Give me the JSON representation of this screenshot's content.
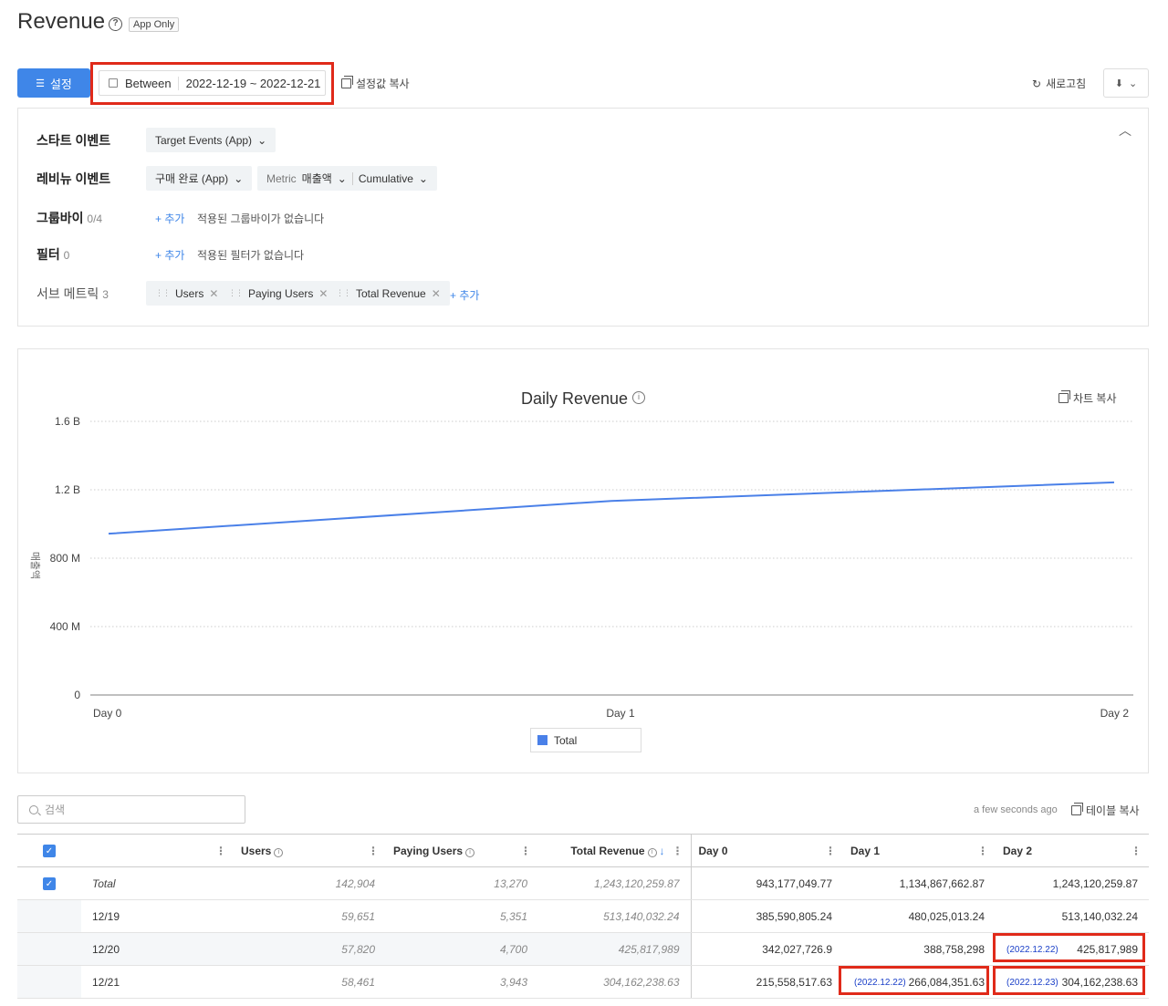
{
  "header": {
    "title": "Revenue",
    "help": "?",
    "badge": "App Only"
  },
  "toolbar": {
    "settings_label": "설정",
    "date_mode": "Between",
    "date_range": "2022-12-19 ~ 2022-12-21",
    "copy_settings_label": "설정값 복사",
    "refresh_label": "새로고침"
  },
  "settings": {
    "start_event": {
      "label": "스타트 이벤트",
      "value": "Target Events (App)"
    },
    "revenue_event": {
      "label": "레비뉴 이벤트",
      "value": "구매 완료 (App)",
      "metric_label": "Metric",
      "metric_value": "매출액",
      "mode": "Cumulative"
    },
    "groupby": {
      "label": "그룹바이",
      "count": "0/4",
      "add": "+ 추가",
      "empty": "적용된 그룹바이가 없습니다"
    },
    "filter": {
      "label": "필터",
      "count": "0",
      "add": "+ 추가",
      "empty": "적용된 필터가 없습니다"
    },
    "sub_metric": {
      "label": "서브 메트릭",
      "count": "3",
      "items": [
        "Users",
        "Paying Users",
        "Total Revenue"
      ],
      "add": "+ 추가"
    }
  },
  "chart": {
    "copy_label": "차트 복사",
    "info": "i"
  },
  "chart_data": {
    "type": "line",
    "title": "Daily Revenue",
    "ylabel": "매출액",
    "xlabel": "",
    "categories": [
      "Day 0",
      "Day 1",
      "Day 2"
    ],
    "yticks": [
      "0",
      "400 M",
      "800 M",
      "1.2 B",
      "1.6 B"
    ],
    "ylim": [
      0,
      1600000000
    ],
    "series": [
      {
        "name": "Total",
        "color": "#4a80e8",
        "values": [
          943177049.77,
          1134867662.87,
          1243120259.87
        ]
      }
    ],
    "grid": true,
    "legend": "bottom"
  },
  "table": {
    "search_placeholder": "검색",
    "updated": "a few seconds ago",
    "copy_label": "테이블 복사",
    "columns": [
      "Users",
      "Paying Users",
      "Total Revenue",
      "Day 0",
      "Day 1",
      "Day 2"
    ],
    "total": {
      "label": "Total",
      "users": "142,904",
      "paying": "13,270",
      "revenue": "1,243,120,259.87",
      "d0": "943,177,049.77",
      "d1": "1,134,867,662.87",
      "d2": "1,243,120,259.87"
    },
    "rows": [
      {
        "date": "12/19",
        "users": "59,651",
        "paying": "5,351",
        "revenue": "513,140,032.24",
        "d0": "385,590,805.24",
        "d1": "480,025,013.24",
        "d2": "513,140,032.24",
        "d1_note": "",
        "d2_note": ""
      },
      {
        "date": "12/20",
        "users": "57,820",
        "paying": "4,700",
        "revenue": "425,817,989",
        "d0": "342,027,726.9",
        "d1": "388,758,298",
        "d2": "425,817,989",
        "d1_note": "",
        "d2_note": "(2022.12.22)"
      },
      {
        "date": "12/21",
        "users": "58,461",
        "paying": "3,943",
        "revenue": "304,162,238.63",
        "d0": "215,558,517.63",
        "d1": "266,084,351.63",
        "d2": "304,162,238.63",
        "d1_note": "(2022.12.22)",
        "d2_note": "(2022.12.23)"
      }
    ]
  }
}
